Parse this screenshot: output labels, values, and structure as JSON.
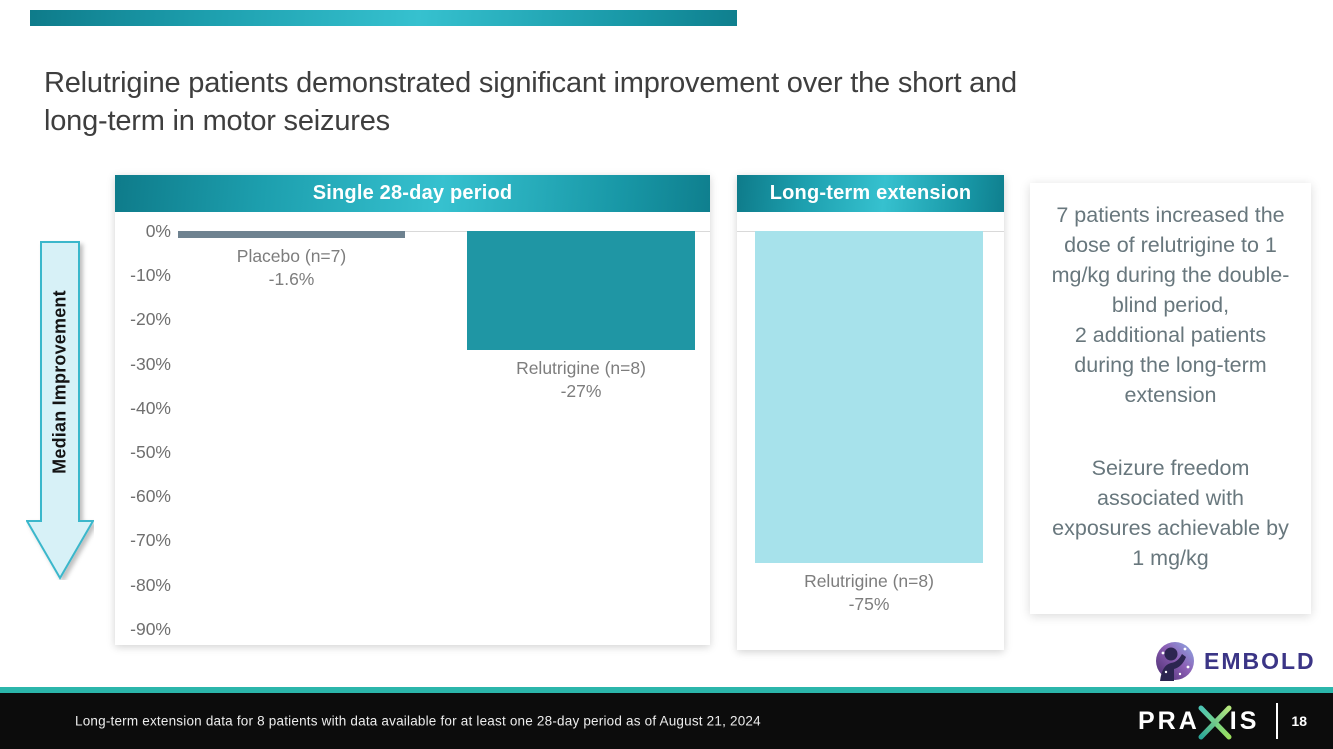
{
  "slide": {
    "title_lines": [
      "Relutrigine patients demonstrated significant improvement over the short and",
      "long-term in motor seizures"
    ],
    "footnote": "Long-term extension data for 8 patients with data available for at least one 28-day period as of August 21, 2024",
    "page_number": "18"
  },
  "arrow": {
    "label": "Median Improvement"
  },
  "side_note": {
    "para1_lines": [
      "7 patients increased the dose of relutrigine to 1 mg/kg during the double-blind period,",
      "2 additional patients during the long-term extension"
    ],
    "para2": "Seizure freedom associated with exposures achievable by 1 mg/kg"
  },
  "logos": {
    "embold_text": "EMBOLD",
    "praxis_pra": "PRA",
    "praxis_is": "IS"
  },
  "colors": {
    "teal_header": "#1d9fae",
    "footer_accent": "#2bb6ab",
    "embold_purple": "#3b3586"
  },
  "chart_data": {
    "type": "bar",
    "ylabel": "Median Improvement",
    "y_unit": "%",
    "ylim": [
      -90,
      0
    ],
    "grid": "zero-baseline only",
    "yticks": [
      0,
      -10,
      -20,
      -30,
      -40,
      -50,
      -60,
      -70,
      -80,
      -90
    ],
    "panels": [
      {
        "title": "Single 28-day period",
        "bars": [
          {
            "label": "Placebo (n=7)",
            "value": -1.6,
            "value_label": "-1.6%",
            "color": "#6e8290"
          },
          {
            "label": "Relutrigine (n=8)",
            "value": -27,
            "value_label": "-27%",
            "color": "#1f96a4"
          }
        ]
      },
      {
        "title": "Long-term extension",
        "bars": [
          {
            "label": "Relutrigine (n=8)",
            "value": -75,
            "value_label": "-75%",
            "color": "#a7e2eb"
          }
        ]
      }
    ]
  }
}
